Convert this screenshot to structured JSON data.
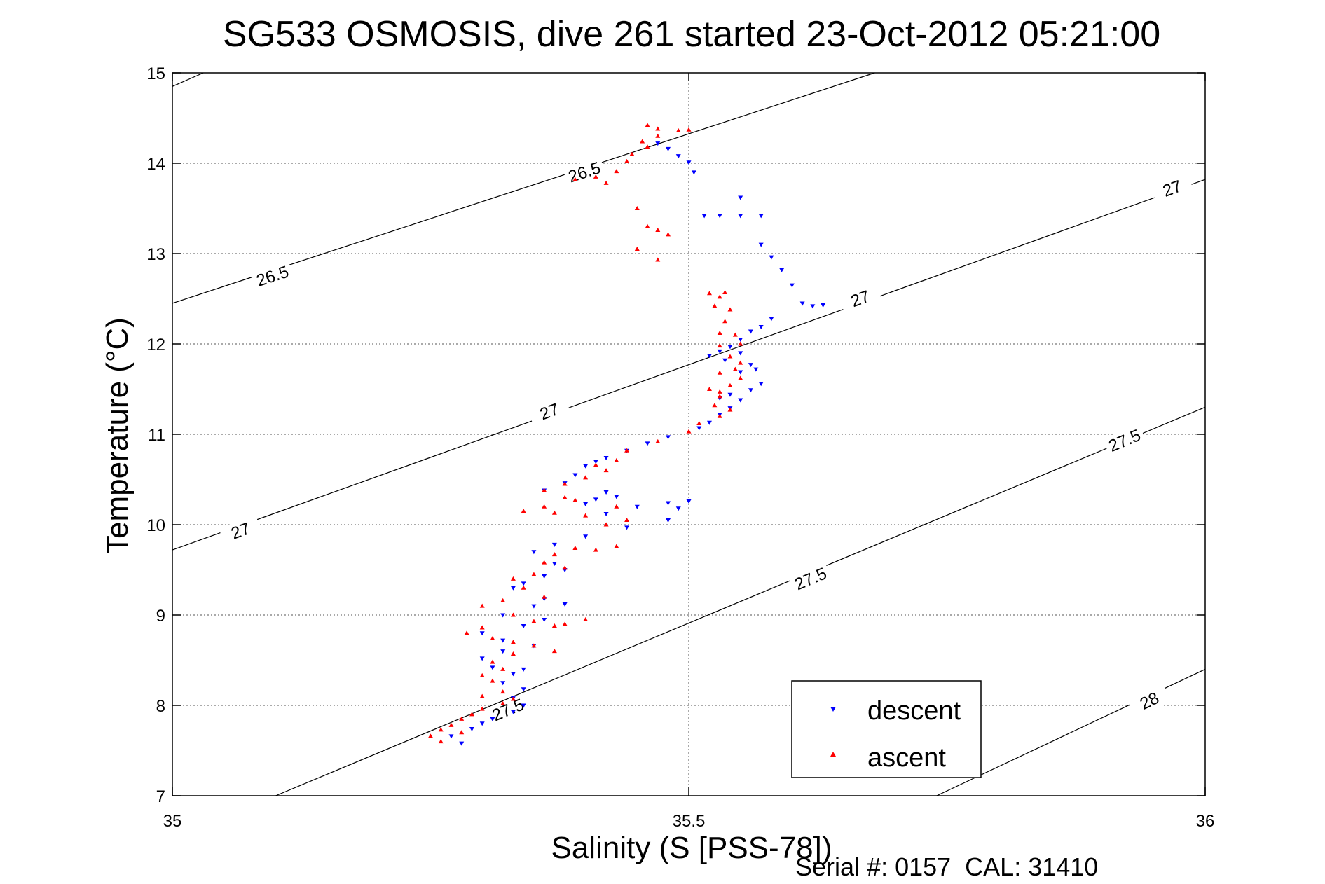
{
  "chart_data": {
    "type": "scatter",
    "title": "SG533 OSMOSIS, dive 261 started 23-Oct-2012 05:21:00",
    "xlabel": "Salinity (S [PSS-78])",
    "ylabel": "Temperature (°C)",
    "footer": "Serial #: 0157  CAL: 31410",
    "xlim": [
      35,
      36
    ],
    "ylim": [
      7,
      15
    ],
    "xticks": [
      35,
      35.5,
      36
    ],
    "yticks": [
      7,
      8,
      9,
      10,
      11,
      12,
      13,
      14,
      15
    ],
    "xtick_labels": [
      "35",
      "35.5",
      "36"
    ],
    "ytick_labels": [
      "7",
      "8",
      "9",
      "10",
      "11",
      "12",
      "13",
      "14",
      "15"
    ],
    "grid": true,
    "legend_position": "bottom-right",
    "density_contours": [
      {
        "label": "26.5",
        "points": [
          [
            35.0,
            14.85
          ],
          [
            35.03,
            15.0
          ]
        ],
        "label_positions": []
      },
      {
        "label": "26.5",
        "points": [
          [
            35.0,
            12.45
          ],
          [
            35.68,
            15.0
          ]
        ],
        "label_positions": [
          [
            35.097,
            12.75
          ],
          [
            35.399,
            13.9
          ]
        ]
      },
      {
        "label": "27",
        "points": [
          [
            35.0,
            9.72
          ],
          [
            36.0,
            13.82
          ]
        ],
        "label_positions": [
          [
            35.066,
            9.93
          ],
          [
            35.365,
            11.25
          ],
          [
            35.666,
            12.5
          ],
          [
            35.968,
            13.72
          ]
        ]
      },
      {
        "label": "27.5",
        "points": [
          [
            35.1,
            7.0
          ],
          [
            36.0,
            11.3
          ]
        ],
        "label_positions": [
          [
            35.325,
            7.95
          ],
          [
            35.618,
            9.4
          ],
          [
            35.922,
            10.93
          ]
        ]
      },
      {
        "label": "28",
        "points": [
          [
            35.74,
            7.0
          ],
          [
            36.0,
            8.4
          ]
        ],
        "label_positions": [
          [
            35.946,
            8.05
          ]
        ]
      }
    ],
    "series": [
      {
        "name": "descent",
        "color": "#0000ff",
        "marker": "triangle-down",
        "points": [
          [
            35.47,
            14.22
          ],
          [
            35.48,
            14.16
          ],
          [
            35.49,
            14.08
          ],
          [
            35.5,
            14.01
          ],
          [
            35.505,
            13.9
          ],
          [
            35.515,
            13.42
          ],
          [
            35.53,
            13.42
          ],
          [
            35.55,
            13.42
          ],
          [
            35.57,
            13.42
          ],
          [
            35.55,
            13.62
          ],
          [
            35.57,
            13.1
          ],
          [
            35.58,
            12.96
          ],
          [
            35.59,
            12.82
          ],
          [
            35.6,
            12.65
          ],
          [
            35.61,
            12.45
          ],
          [
            35.62,
            12.42
          ],
          [
            35.63,
            12.43
          ],
          [
            35.58,
            12.28
          ],
          [
            35.57,
            12.19
          ],
          [
            35.56,
            12.14
          ],
          [
            35.55,
            12.05
          ],
          [
            35.54,
            11.97
          ],
          [
            35.53,
            11.92
          ],
          [
            35.52,
            11.87
          ],
          [
            35.535,
            11.82
          ],
          [
            35.55,
            11.9
          ],
          [
            35.56,
            11.77
          ],
          [
            35.55,
            11.69
          ],
          [
            35.565,
            11.72
          ],
          [
            35.57,
            11.56
          ],
          [
            35.56,
            11.49
          ],
          [
            35.54,
            11.44
          ],
          [
            35.53,
            11.4
          ],
          [
            35.55,
            11.38
          ],
          [
            35.54,
            11.29
          ],
          [
            35.53,
            11.22
          ],
          [
            35.52,
            11.13
          ],
          [
            35.51,
            11.07
          ],
          [
            35.48,
            10.97
          ],
          [
            35.46,
            10.9
          ],
          [
            35.44,
            10.82
          ],
          [
            35.42,
            10.74
          ],
          [
            35.4,
            10.65
          ],
          [
            35.41,
            10.7
          ],
          [
            35.39,
            10.55
          ],
          [
            35.38,
            10.46
          ],
          [
            35.36,
            10.38
          ],
          [
            35.42,
            10.36
          ],
          [
            35.41,
            10.28
          ],
          [
            35.43,
            10.31
          ],
          [
            35.4,
            10.23
          ],
          [
            35.42,
            10.12
          ],
          [
            35.45,
            10.2
          ],
          [
            35.48,
            10.24
          ],
          [
            35.5,
            10.26
          ],
          [
            35.49,
            10.18
          ],
          [
            35.48,
            10.05
          ],
          [
            35.44,
            9.97
          ],
          [
            35.4,
            9.87
          ],
          [
            35.37,
            9.78
          ],
          [
            35.35,
            9.7
          ],
          [
            35.37,
            9.57
          ],
          [
            35.38,
            9.5
          ],
          [
            35.36,
            9.43
          ],
          [
            35.34,
            9.35
          ],
          [
            35.33,
            9.3
          ],
          [
            35.36,
            9.18
          ],
          [
            35.38,
            9.12
          ],
          [
            35.35,
            9.1
          ],
          [
            35.32,
            9.0
          ],
          [
            35.36,
            8.95
          ],
          [
            35.34,
            8.88
          ],
          [
            35.3,
            8.8
          ],
          [
            35.32,
            8.72
          ],
          [
            35.35,
            8.66
          ],
          [
            35.32,
            8.6
          ],
          [
            35.3,
            8.52
          ],
          [
            35.31,
            8.42
          ],
          [
            35.33,
            8.35
          ],
          [
            35.34,
            8.4
          ],
          [
            35.32,
            8.25
          ],
          [
            35.34,
            8.18
          ],
          [
            35.33,
            8.08
          ],
          [
            35.34,
            8.0
          ],
          [
            35.33,
            7.93
          ],
          [
            35.31,
            7.85
          ],
          [
            35.3,
            7.8
          ],
          [
            35.29,
            7.74
          ],
          [
            35.27,
            7.66
          ],
          [
            35.28,
            7.58
          ]
        ]
      },
      {
        "name": "ascent",
        "color": "#ff0000",
        "marker": "triangle-up",
        "points": [
          [
            35.46,
            14.42
          ],
          [
            35.47,
            14.38
          ],
          [
            35.49,
            14.36
          ],
          [
            35.5,
            14.37
          ],
          [
            35.47,
            14.3
          ],
          [
            35.455,
            14.24
          ],
          [
            35.46,
            14.18
          ],
          [
            35.445,
            14.1
          ],
          [
            35.44,
            14.02
          ],
          [
            35.43,
            13.91
          ],
          [
            35.41,
            13.85
          ],
          [
            35.39,
            13.82
          ],
          [
            35.42,
            13.78
          ],
          [
            35.45,
            13.5
          ],
          [
            35.46,
            13.3
          ],
          [
            35.47,
            13.26
          ],
          [
            35.48,
            13.21
          ],
          [
            35.45,
            13.05
          ],
          [
            35.47,
            12.93
          ],
          [
            35.52,
            12.56
          ],
          [
            35.53,
            12.52
          ],
          [
            35.535,
            12.57
          ],
          [
            35.525,
            12.42
          ],
          [
            35.54,
            12.38
          ],
          [
            35.535,
            12.25
          ],
          [
            35.53,
            12.12
          ],
          [
            35.545,
            12.1
          ],
          [
            35.55,
            12.0
          ],
          [
            35.53,
            11.98
          ],
          [
            35.54,
            11.86
          ],
          [
            35.55,
            11.79
          ],
          [
            35.545,
            11.72
          ],
          [
            35.53,
            11.68
          ],
          [
            35.55,
            11.62
          ],
          [
            35.54,
            11.54
          ],
          [
            35.53,
            11.47
          ],
          [
            35.52,
            11.5
          ],
          [
            35.53,
            11.42
          ],
          [
            35.525,
            11.32
          ],
          [
            35.54,
            11.27
          ],
          [
            35.53,
            11.2
          ],
          [
            35.51,
            11.12
          ],
          [
            35.5,
            11.03
          ],
          [
            35.47,
            10.92
          ],
          [
            35.44,
            10.82
          ],
          [
            35.43,
            10.71
          ],
          [
            35.41,
            10.66
          ],
          [
            35.42,
            10.6
          ],
          [
            35.4,
            10.52
          ],
          [
            35.38,
            10.45
          ],
          [
            35.36,
            10.38
          ],
          [
            35.38,
            10.3
          ],
          [
            35.39,
            10.27
          ],
          [
            35.36,
            10.2
          ],
          [
            35.34,
            10.15
          ],
          [
            35.37,
            10.13
          ],
          [
            35.4,
            10.1
          ],
          [
            35.43,
            10.2
          ],
          [
            35.44,
            10.05
          ],
          [
            35.42,
            10.0
          ],
          [
            35.43,
            9.76
          ],
          [
            35.41,
            9.72
          ],
          [
            35.39,
            9.74
          ],
          [
            35.37,
            9.67
          ],
          [
            35.36,
            9.58
          ],
          [
            35.38,
            9.52
          ],
          [
            35.35,
            9.45
          ],
          [
            35.33,
            9.4
          ],
          [
            35.34,
            9.3
          ],
          [
            35.36,
            9.2
          ],
          [
            35.32,
            9.16
          ],
          [
            35.3,
            9.1
          ],
          [
            35.33,
            9.0
          ],
          [
            35.35,
            8.93
          ],
          [
            35.37,
            8.88
          ],
          [
            35.38,
            8.9
          ],
          [
            35.4,
            8.95
          ],
          [
            35.3,
            8.86
          ],
          [
            35.285,
            8.8
          ],
          [
            35.31,
            8.74
          ],
          [
            35.33,
            8.7
          ],
          [
            35.35,
            8.66
          ],
          [
            35.37,
            8.6
          ],
          [
            35.33,
            8.57
          ],
          [
            35.31,
            8.48
          ],
          [
            35.32,
            8.4
          ],
          [
            35.3,
            8.33
          ],
          [
            35.31,
            8.27
          ],
          [
            35.32,
            8.15
          ],
          [
            35.3,
            8.1
          ],
          [
            35.33,
            8.07
          ],
          [
            35.32,
            8.02
          ],
          [
            35.3,
            7.96
          ],
          [
            35.29,
            7.9
          ],
          [
            35.28,
            7.85
          ],
          [
            35.27,
            7.78
          ],
          [
            35.26,
            7.73
          ],
          [
            35.28,
            7.7
          ],
          [
            35.25,
            7.66
          ],
          [
            35.26,
            7.6
          ]
        ]
      }
    ]
  }
}
